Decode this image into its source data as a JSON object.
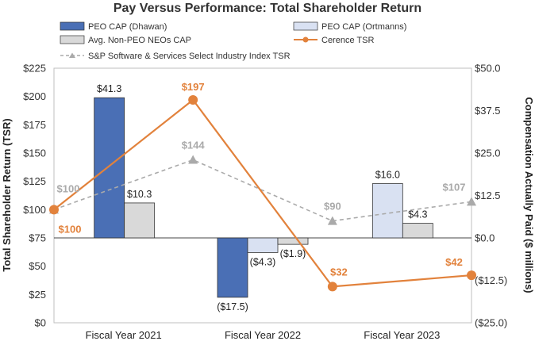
{
  "chart_data": {
    "type": "bar+line",
    "title": "Pay Versus Performance: Total Shareholder Return",
    "categories": [
      "Fiscal Year 2021",
      "Fiscal Year 2022",
      "Fiscal Year 2023"
    ],
    "left_axis": {
      "label": "Total Shareholder Return (TSR)",
      "range": [
        0,
        225
      ],
      "ticks": [
        "$0",
        "$25",
        "$50",
        "$75",
        "$100",
        "$125",
        "$150",
        "$175",
        "$200",
        "$225"
      ]
    },
    "right_axis": {
      "label": "Compensation Actually Paid ($ millions)",
      "range": [
        -25,
        50
      ],
      "ticks": [
        "($25.0)",
        "($12.5)",
        "$0.0",
        "$12.5",
        "$25.0",
        "$37.5",
        "$50.0"
      ]
    },
    "bar_series": [
      {
        "name": "PEO CAP (Dhawan)",
        "color": "#4a6fb5",
        "values": [
          41.3,
          -17.5,
          null
        ],
        "labels": [
          "$41.3",
          "($17.5)",
          ""
        ]
      },
      {
        "name": "PEO CAP (Ortmanns)",
        "color": "#d9e1f2",
        "values": [
          null,
          -4.3,
          16.0
        ],
        "labels": [
          "",
          "($4.3)",
          "$16.0"
        ]
      },
      {
        "name": "Avg. Non-PEO NEOs CAP",
        "color": "#d9d9d9",
        "values": [
          10.3,
          -1.9,
          4.3
        ],
        "labels": [
          "$10.3",
          "($1.9)",
          "$4.3"
        ]
      }
    ],
    "line_series": [
      {
        "name": "Cerence TSR",
        "color": "#e2823c",
        "x": [
          0,
          1,
          2,
          3
        ],
        "values": [
          100,
          197,
          32,
          42
        ],
        "labels": [
          "$100",
          "$197",
          "$32",
          "$42"
        ]
      },
      {
        "name": "S&P Software & Services Select Industry Index TSR",
        "color": "#aaaaaa",
        "x": [
          0,
          1,
          2,
          3
        ],
        "values": [
          100,
          144,
          90,
          107
        ],
        "labels": [
          "$100",
          "$144",
          "$90",
          "$107"
        ]
      }
    ],
    "legend": [
      "PEO CAP (Dhawan)",
      "PEO CAP (Ortmanns)",
      "Avg. Non-PEO NEOs CAP",
      "Cerence TSR",
      "S&P Software & Services Select Industry Index TSR"
    ]
  }
}
